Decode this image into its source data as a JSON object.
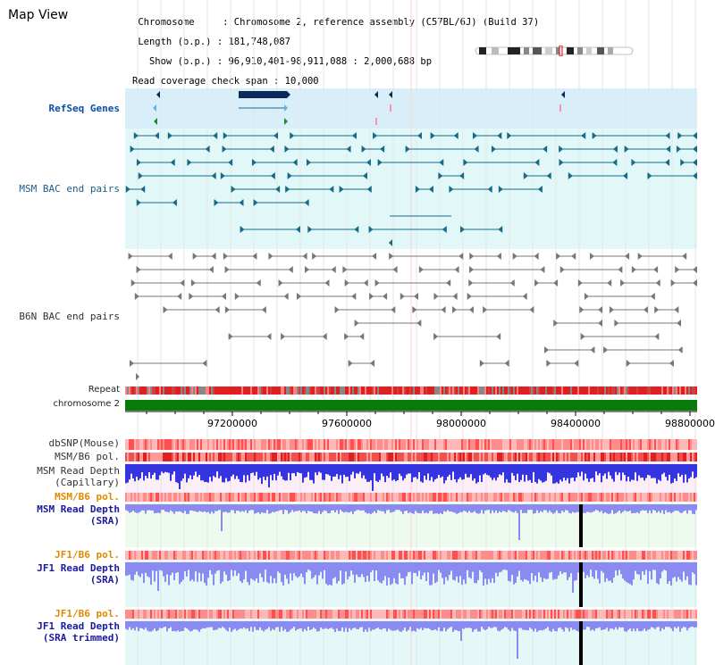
{
  "header": {
    "title": "Map View",
    "lines": [
      " Chromosome     : Chromosome 2, reference assembly (C57BL/6J) (Build 37)",
      " Length (b.p.) : 181,748,087",
      "   Show (b.p.) : 96,910,401-98,911,088 : 2,000,688 bp",
      "Read coverage check span : 10,000"
    ]
  },
  "tracks": {
    "refseq": "RefSeq Genes",
    "msm_bac": "MSM BAC end pairs",
    "b6n_bac": "B6N BAC end pairs",
    "repeat": "Repeat",
    "chromosome": "chromosome 2",
    "dbsnp": "dbSNP(Mouse)",
    "msm_b6_pol_1": "MSM/B6 pol.",
    "msm_depth_cap_1": "MSM Read Depth",
    "msm_depth_cap_2": "(Capillary)",
    "msm_b6_pol_2": "MSM/B6 pol.",
    "msm_depth_sra_1": "MSM Read Depth",
    "msm_depth_sra_2": "(SRA)",
    "jf1_b6_pol_1": "JF1/B6 pol.",
    "jf1_depth_1": "JF1 Read Depth",
    "jf1_depth_2": "(SRA)",
    "jf1_b6_pol_2": "JF1/B6 pol.",
    "jf1_trim_1": "JF1 Read Depth",
    "jf1_trim_2": "(SRA trimmed)"
  },
  "axis": {
    "ticks": [
      "97200000",
      "97600000",
      "98000000",
      "98400000",
      "98800000"
    ]
  },
  "colors": {
    "refseq_bg": "#d8effa",
    "msm_bg": "#e2f8f8",
    "gene_dark": "#0b2a5c",
    "teal": "#176a88",
    "chrom_green": "#0a7a0a",
    "depth_blue": "#3535e0",
    "light_blue": "#8a8af0"
  }
}
